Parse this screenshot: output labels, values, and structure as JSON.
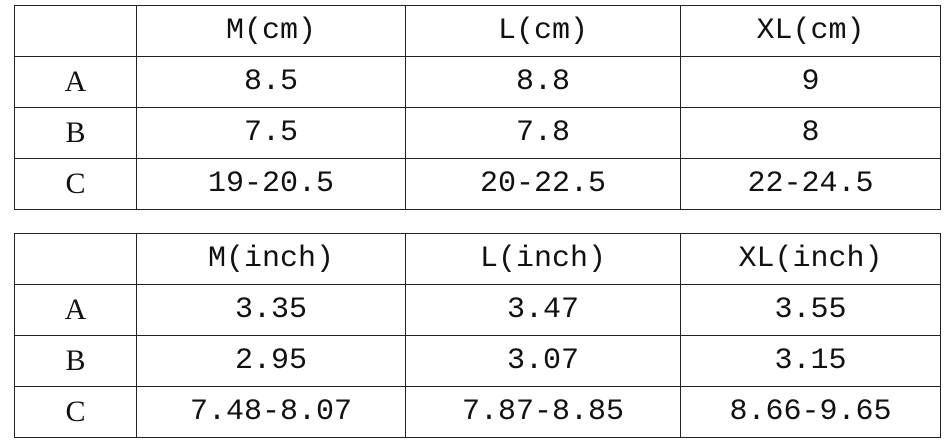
{
  "tables": [
    {
      "columns": [
        "M(cm)",
        "L(cm)",
        "XL(cm)"
      ],
      "rows": [
        {
          "label": "A",
          "values": [
            "8.5",
            "8.8",
            "9"
          ]
        },
        {
          "label": "B",
          "values": [
            "7.5",
            "7.8",
            "8"
          ]
        },
        {
          "label": "C",
          "values": [
            "19-20.5",
            "20-22.5",
            "22-24.5"
          ]
        }
      ]
    },
    {
      "columns": [
        "M(inch)",
        "L(inch)",
        "XL(inch)"
      ],
      "rows": [
        {
          "label": "A",
          "values": [
            "3.35",
            "3.47",
            "3.55"
          ]
        },
        {
          "label": "B",
          "values": [
            "2.95",
            "3.07",
            "3.15"
          ]
        },
        {
          "label": "C",
          "values": [
            "7.48-8.07",
            "7.87-8.85",
            "8.66-9.65"
          ]
        }
      ]
    }
  ]
}
